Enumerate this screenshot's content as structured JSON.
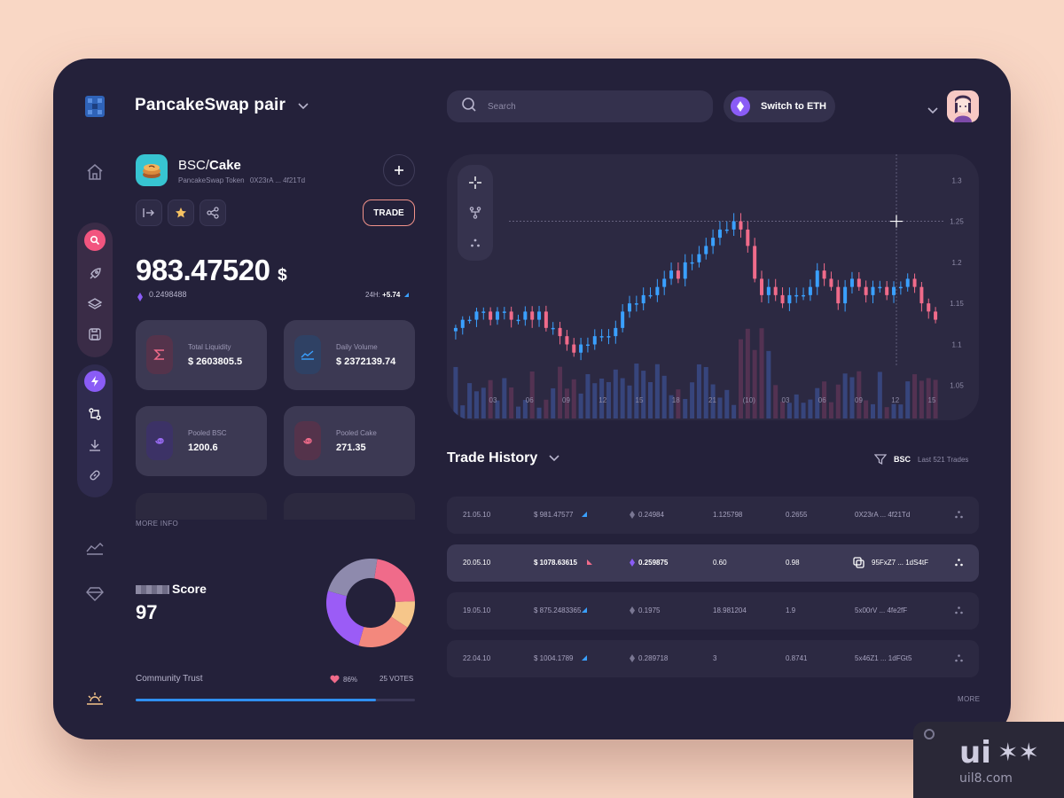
{
  "header": {
    "pair_title": "PancakeSwap pair",
    "search_placeholder": "Search",
    "switch_label": "Switch to ETH"
  },
  "token": {
    "chain": "BSC/",
    "symbol": "Cake",
    "name": "PancakeSwap Token",
    "address": "0X23rA ... 4f21Td",
    "trade_label": "TRADE",
    "price": "983.47520",
    "currency": "$",
    "eth_price": "0.2498488",
    "change_label": "24H:",
    "change_value": "+5.74"
  },
  "stats": [
    {
      "label": "Total Liquidity",
      "value": "$ 2603805.5",
      "color": "#f06b8a",
      "icon": "sigma-icon"
    },
    {
      "label": "Daily Volume",
      "value": "$ 2372139.74",
      "color": "#3aa0ff",
      "icon": "trend-icon"
    },
    {
      "label": "Pooled BSC",
      "value": "1200.6",
      "color": "#8a5cf6",
      "icon": "spiral-icon"
    },
    {
      "label": "Pooled Cake",
      "value": "271.35",
      "color": "#f06b8a",
      "icon": "spiral-icon"
    }
  ],
  "more_info": "MORE INFO",
  "score": {
    "label": "Score",
    "value": "97",
    "donut": [
      {
        "value": 22,
        "color": "#f06b8a"
      },
      {
        "value": 10,
        "color": "#f6c68a"
      },
      {
        "value": 20,
        "color": "#f3887d"
      },
      {
        "value": 25,
        "color": "#9b5cf6"
      },
      {
        "value": 23,
        "color": "#8e8aad"
      }
    ]
  },
  "trust": {
    "label": "Community Trust",
    "percent_label": "86%",
    "percent": 86,
    "votes": "25 VOTES"
  },
  "chart_data": {
    "type": "candlestick",
    "y_ticks": [
      "1.3",
      "1.25",
      "1.2",
      "1.15",
      "1.1",
      "1.05"
    ],
    "ylim": [
      1.04,
      1.31
    ],
    "x_ticks": [
      "03",
      "06",
      "09",
      "12",
      "15",
      "18",
      "21",
      "(10)",
      "03",
      "06",
      "09",
      "12",
      "15"
    ],
    "crosshair_value": 1.25,
    "closes": [
      1.12,
      1.13,
      1.13,
      1.14,
      1.14,
      1.13,
      1.14,
      1.14,
      1.13,
      1.13,
      1.14,
      1.13,
      1.14,
      1.12,
      1.12,
      1.11,
      1.1,
      1.09,
      1.1,
      1.1,
      1.11,
      1.11,
      1.11,
      1.12,
      1.14,
      1.15,
      1.15,
      1.16,
      1.16,
      1.17,
      1.18,
      1.19,
      1.18,
      1.2,
      1.2,
      1.21,
      1.22,
      1.23,
      1.24,
      1.24,
      1.25,
      1.24,
      1.22,
      1.18,
      1.16,
      1.17,
      1.16,
      1.15,
      1.16,
      1.16,
      1.16,
      1.17,
      1.19,
      1.18,
      1.17,
      1.15,
      1.17,
      1.18,
      1.17,
      1.16,
      1.17,
      1.17,
      1.16,
      1.17,
      1.17,
      1.18,
      1.17,
      1.15,
      1.14,
      1.13
    ]
  },
  "trade_history": {
    "title": "Trade History",
    "filter_chain": "BSC",
    "filter_count": "Last 521 Trades",
    "more": "MORE",
    "rows": [
      {
        "date": "21.05.10",
        "price": "$ 981.47577",
        "dir": "up",
        "eth": "0.24984",
        "amount": "1.125798",
        "fee": "0.2655",
        "addr": "0X23rA ... 4f21Td",
        "active": false
      },
      {
        "date": "20.05.10",
        "price": "$ 1078.63615",
        "dir": "down",
        "eth": "0.259875",
        "amount": "0.60",
        "fee": "0.98",
        "addr": "95FxZ7 ... 1dS4tF",
        "active": true
      },
      {
        "date": "19.05.10",
        "price": "$ 875.2483365",
        "dir": "up",
        "eth": "0.1975",
        "amount": "18.981204",
        "fee": "1.9",
        "addr": "5x00rV ... 4fe2fF",
        "active": false
      },
      {
        "date": "22.04.10",
        "price": "$ 1004.1789",
        "dir": "up",
        "eth": "0.289718",
        "amount": "3",
        "fee": "0.8741",
        "addr": "5x46Z1 ... 1dFGt5",
        "active": false
      }
    ]
  },
  "colors": {
    "up": "#3aa0ff",
    "down": "#f06b8a",
    "bg": "#24213a",
    "accent": "#8a5cf6"
  }
}
